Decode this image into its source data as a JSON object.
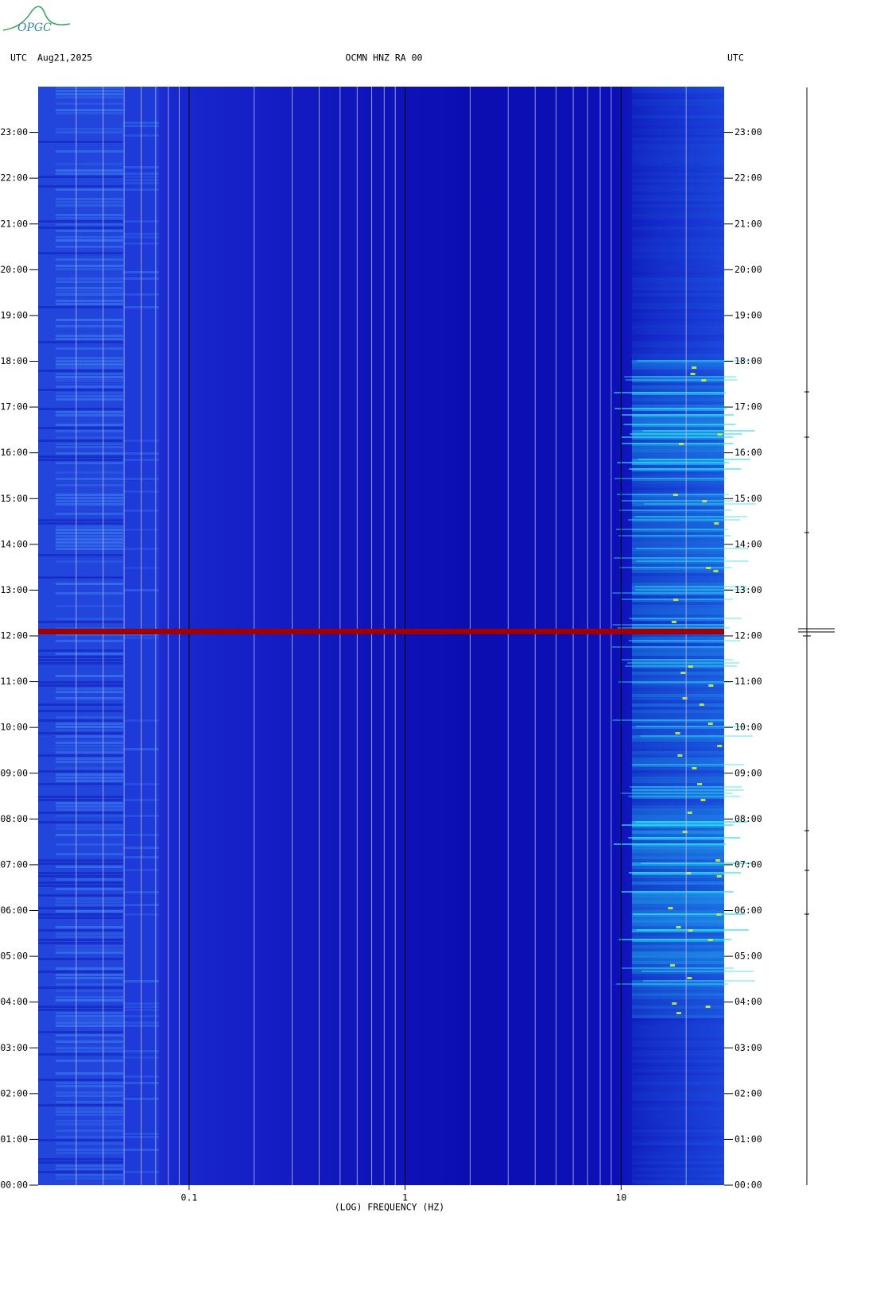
{
  "logo": "OPGC",
  "chart_data": {
    "type": "spectrogram",
    "title": "OCMN HNZ RA 00",
    "date": "Aug21,2025",
    "timezone_label": "UTC",
    "xlabel": "(LOG) FREQUENCY (HZ)",
    "xscale": "log",
    "xlim": [
      0.02,
      30
    ],
    "xticks": [
      0.1,
      1,
      10
    ],
    "xgrid": [
      0.03,
      0.04,
      0.05,
      0.06,
      0.07,
      0.08,
      0.09,
      0.2,
      0.3,
      0.4,
      0.5,
      0.6,
      0.7,
      0.8,
      0.9,
      2,
      3,
      4,
      5,
      6,
      7,
      8,
      9,
      20
    ],
    "ylim": [
      0,
      24
    ],
    "yticks": [
      {
        "value": 0,
        "label": "00:00"
      },
      {
        "value": 1,
        "label": "01:00"
      },
      {
        "value": 2,
        "label": "02:00"
      },
      {
        "value": 3,
        "label": "03:00"
      },
      {
        "value": 4,
        "label": "04:00"
      },
      {
        "value": 5,
        "label": "05:00"
      },
      {
        "value": 6,
        "label": "06:00"
      },
      {
        "value": 7,
        "label": "07:00"
      },
      {
        "value": 8,
        "label": "08:00"
      },
      {
        "value": 9,
        "label": "09:00"
      },
      {
        "value": 10,
        "label": "10:00"
      },
      {
        "value": 11,
        "label": "11:00"
      },
      {
        "value": 12,
        "label": "12:00"
      },
      {
        "value": 13,
        "label": "13:00"
      },
      {
        "value": 14,
        "label": "14:00"
      },
      {
        "value": 15,
        "label": "15:00"
      },
      {
        "value": 16,
        "label": "16:00"
      },
      {
        "value": 17,
        "label": "17:00"
      },
      {
        "value": 18,
        "label": "18:00"
      },
      {
        "value": 19,
        "label": "19:00"
      },
      {
        "value": 20,
        "label": "20:00"
      },
      {
        "value": 21,
        "label": "21:00"
      },
      {
        "value": 22,
        "label": "22:00"
      },
      {
        "value": 23,
        "label": "23:00"
      }
    ]
  }
}
